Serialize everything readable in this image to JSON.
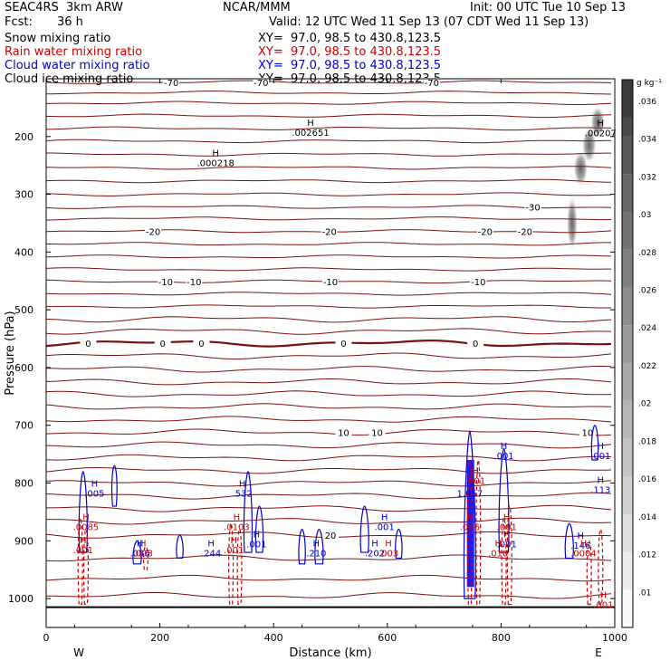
{
  "header": {
    "model": "SEAC4RS  3km ARW",
    "center": "NCAR/MMM",
    "init": "Init: 00 UTC Tue 10 Sep 13",
    "fcst_label": "Fcst:",
    "fcst_value": "36 h",
    "valid": "Valid: 12 UTC Wed 11 Sep 13 (07 CDT Wed 11 Sep 13)"
  },
  "fields": [
    {
      "name": "Snow mixing ratio",
      "xy": "XY=  97.0, 98.5 to 430.8,123.5",
      "color": "#000000"
    },
    {
      "name": "Rain water mixing ratio",
      "xy": "XY=  97.0, 98.5 to 430.8,123.5",
      "color": "#cc0000"
    },
    {
      "name": "Cloud water mixing ratio",
      "xy": "XY=  97.0, 98.5 to 430.8,123.5",
      "color": "#0000cc"
    },
    {
      "name": "Cloud ice mixing ratio",
      "xy": "XY=  97.0, 98.5 to 430.8,123.5",
      "color": "#000000"
    }
  ],
  "chart_data": {
    "type": "contour",
    "xlabel": "Distance (km)",
    "ylabel": "Pressure (hPa)",
    "xlim": [
      0,
      1000
    ],
    "ylim": [
      1050,
      100
    ],
    "x_ticks": [
      0,
      200,
      400,
      600,
      800,
      1000
    ],
    "y_ticks": [
      200,
      300,
      400,
      500,
      600,
      700,
      800,
      900,
      1000
    ],
    "left_end": "W",
    "right_end": "E",
    "colorbar": {
      "unit": "g kg⁻¹",
      "ticks": [
        ".01",
        ".012",
        ".014",
        ".016",
        ".018",
        ".02",
        ".022",
        ".024",
        ".026",
        ".028",
        ".03",
        ".032",
        ".034",
        ".036"
      ]
    },
    "temperature_contours": [
      {
        "p": 106,
        "label": "-70",
        "label_x": [
          220,
          378,
          678
        ]
      },
      {
        "p": 124,
        "label": "",
        "label_x": []
      },
      {
        "p": 142,
        "label": "",
        "label_x": []
      },
      {
        "p": 164,
        "label": "",
        "label_x": []
      },
      {
        "p": 186,
        "label": "",
        "label_x": []
      },
      {
        "p": 208,
        "label": "",
        "label_x": []
      },
      {
        "p": 231,
        "label": "",
        "label_x": []
      },
      {
        "p": 254,
        "label": "",
        "label_x": []
      },
      {
        "p": 277,
        "label": "",
        "label_x": []
      },
      {
        "p": 300,
        "label": "",
        "label_x": []
      },
      {
        "p": 322,
        "label": "-30",
        "label_x": [
          856
        ]
      },
      {
        "p": 342,
        "label": "",
        "label_x": []
      },
      {
        "p": 364,
        "label": "-20",
        "label_x": [
          188,
          498,
          772,
          842
        ]
      },
      {
        "p": 386,
        "label": "",
        "label_x": []
      },
      {
        "p": 408,
        "label": "",
        "label_x": []
      },
      {
        "p": 430,
        "label": "",
        "label_x": []
      },
      {
        "p": 451,
        "label": "-10",
        "label_x": [
          210,
          260,
          500,
          760
        ]
      },
      {
        "p": 472,
        "label": "",
        "label_x": []
      },
      {
        "p": 494,
        "label": "",
        "label_x": []
      },
      {
        "p": 516,
        "label": "",
        "label_x": []
      },
      {
        "p": 537,
        "label": "",
        "label_x": []
      },
      {
        "p": 558,
        "label": "0",
        "label_x": [
          74,
          205,
          273,
          523,
          755
        ],
        "heavy": true
      },
      {
        "p": 580,
        "label": "",
        "label_x": []
      },
      {
        "p": 603,
        "label": "",
        "label_x": []
      },
      {
        "p": 625,
        "label": "",
        "label_x": []
      },
      {
        "p": 646,
        "label": "",
        "label_x": []
      },
      {
        "p": 668,
        "label": "",
        "label_x": []
      },
      {
        "p": 690,
        "label": "",
        "label_x": []
      },
      {
        "p": 712,
        "label": "10",
        "label_x": [
          523,
          582,
          952
        ]
      },
      {
        "p": 734,
        "label": "",
        "label_x": []
      },
      {
        "p": 756,
        "label": "",
        "label_x": []
      },
      {
        "p": 778,
        "label": "",
        "label_x": []
      },
      {
        "p": 800,
        "label": "",
        "label_x": []
      },
      {
        "p": 822,
        "label": "",
        "label_x": []
      },
      {
        "p": 844,
        "label": "",
        "label_x": []
      },
      {
        "p": 866,
        "label": "",
        "label_x": []
      },
      {
        "p": 890,
        "label": "20",
        "label_x": [
          500
        ]
      },
      {
        "p": 930,
        "label": "",
        "label_x": []
      },
      {
        "p": 965,
        "label": "",
        "label_x": []
      },
      {
        "p": 995,
        "label": "",
        "label_x": []
      }
    ],
    "surface_pressure": 1015,
    "snow_maxima": [
      {
        "x": 465,
        "p": 197,
        "value": ".002651"
      },
      {
        "x": 298,
        "p": 250,
        "value": ".000218"
      },
      {
        "x": 975,
        "p": 198,
        "value": ".00207"
      }
    ],
    "cloud_water_maxima": [
      {
        "x": 85,
        "p": 822,
        "value": ".005"
      },
      {
        "x": 345,
        "p": 822,
        "value": ".532"
      },
      {
        "x": 745,
        "p": 822,
        "value": "1.057"
      },
      {
        "x": 805,
        "p": 757,
        "value": ".001"
      },
      {
        "x": 975,
        "p": 757,
        "value": ".001"
      },
      {
        "x": 975,
        "p": 816,
        "value": ".113"
      },
      {
        "x": 595,
        "p": 880,
        "value": ".001"
      },
      {
        "x": 370,
        "p": 910,
        "value": ".001"
      },
      {
        "x": 810,
        "p": 910,
        "value": ".001"
      },
      {
        "x": 165,
        "p": 925,
        "value": ".036"
      },
      {
        "x": 290,
        "p": 925,
        "value": ".244"
      },
      {
        "x": 475,
        "p": 925,
        "value": ".210"
      },
      {
        "x": 578,
        "p": 925,
        "value": ".202"
      },
      {
        "x": 940,
        "p": 912,
        "value": ".146"
      }
    ],
    "rain_maxima": [
      {
        "x": 70,
        "p": 880,
        "value": ".0085"
      },
      {
        "x": 335,
        "p": 880,
        "value": ".0103"
      },
      {
        "x": 745,
        "p": 880,
        "value": ".026"
      },
      {
        "x": 810,
        "p": 880,
        "value": ".001"
      },
      {
        "x": 65,
        "p": 920,
        "value": ".001"
      },
      {
        "x": 170,
        "p": 925,
        "value": ".008"
      },
      {
        "x": 330,
        "p": 920,
        "value": ".001"
      },
      {
        "x": 602,
        "p": 925,
        "value": ".003"
      },
      {
        "x": 795,
        "p": 925,
        "value": ".010"
      },
      {
        "x": 945,
        "p": 925,
        "value": ".0004"
      },
      {
        "x": 755,
        "p": 800,
        "value": ".001"
      },
      {
        "x": 980,
        "p": 1015,
        "value": ".001"
      }
    ]
  }
}
